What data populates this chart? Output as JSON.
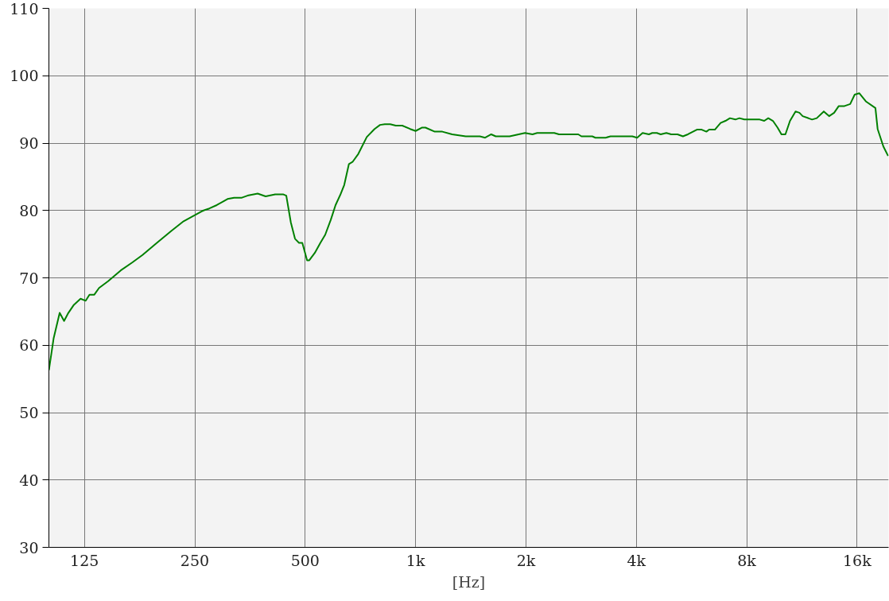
{
  "chart_data": {
    "type": "line",
    "xlabel": "[Hz]",
    "log": "x",
    "grid": true,
    "xlim": [
      100,
      19500
    ],
    "ylim": [
      30,
      110
    ],
    "xticks": [
      {
        "value": 125,
        "label": "125"
      },
      {
        "value": 250,
        "label": "250"
      },
      {
        "value": 500,
        "label": "500"
      },
      {
        "value": 1000,
        "label": "1k"
      },
      {
        "value": 2000,
        "label": "2k"
      },
      {
        "value": 4000,
        "label": "4k"
      },
      {
        "value": 8000,
        "label": "8k"
      },
      {
        "value": 16000,
        "label": "16k"
      }
    ],
    "yticks": [
      30,
      40,
      50,
      60,
      70,
      80,
      90,
      100,
      110
    ],
    "series": [
      {
        "color": "#008000",
        "x": [
          100,
          103,
          107,
          110,
          113,
          117,
          122,
          126,
          129,
          133,
          137,
          145,
          157,
          169,
          180,
          197,
          216,
          233,
          250,
          264,
          274,
          287,
          307,
          320,
          336,
          348,
          371,
          390,
          414,
          435,
          444,
          457,
          469,
          481,
          491,
          506,
          513,
          531,
          550,
          567,
          587,
          605,
          623,
          639,
          658,
          673,
          698,
          736,
          773,
          800,
          824,
          853,
          883,
          920,
          966,
          1000,
          1040,
          1064,
          1128,
          1183,
          1258,
          1370,
          1497,
          1548,
          1608,
          1654,
          1805,
          1988,
          2084,
          2146,
          2389,
          2461,
          2778,
          2834,
          3033,
          3093,
          3300,
          3400,
          3900,
          4020,
          4160,
          4330,
          4420,
          4550,
          4660,
          4830,
          4980,
          5180,
          5360,
          5530,
          5850,
          6030,
          6210,
          6320,
          6550,
          6790,
          7000,
          7200,
          7450,
          7640,
          7880,
          8680,
          8930,
          9160,
          9430,
          9710,
          9950,
          10200,
          10500,
          10870,
          11140,
          11370,
          12060,
          12420,
          12980,
          13420,
          13850,
          14260,
          14780,
          15320,
          15760,
          16230,
          16900,
          17950,
          18200,
          18870,
          19440
        ],
        "values": [
          56.3,
          61.0,
          64.8,
          63.6,
          64.8,
          66.0,
          66.9,
          66.6,
          67.5,
          67.5,
          68.5,
          69.5,
          71.1,
          72.3,
          73.4,
          75.2,
          77.0,
          78.4,
          79.3,
          80.0,
          80.3,
          80.8,
          81.7,
          81.9,
          81.9,
          82.2,
          82.5,
          82.1,
          82.4,
          82.4,
          82.2,
          78.2,
          75.8,
          75.2,
          75.2,
          72.6,
          72.6,
          73.7,
          75.2,
          76.4,
          78.6,
          80.8,
          82.3,
          83.8,
          86.9,
          87.2,
          88.4,
          90.9,
          92.1,
          92.7,
          92.8,
          92.8,
          92.6,
          92.6,
          92.1,
          91.8,
          92.3,
          92.3,
          91.7,
          91.7,
          91.3,
          91.0,
          91.0,
          90.8,
          91.3,
          91.0,
          91.0,
          91.5,
          91.3,
          91.5,
          91.5,
          91.3,
          91.3,
          91.0,
          91.0,
          90.8,
          90.8,
          91.0,
          91.0,
          90.8,
          91.5,
          91.3,
          91.5,
          91.5,
          91.3,
          91.5,
          91.3,
          91.3,
          91.0,
          91.3,
          92.0,
          92.0,
          91.7,
          92.0,
          92.0,
          93.0,
          93.3,
          93.7,
          93.5,
          93.7,
          93.5,
          93.5,
          93.3,
          93.7,
          93.3,
          92.3,
          91.3,
          91.3,
          93.3,
          94.7,
          94.5,
          94.0,
          93.5,
          93.7,
          94.7,
          94.0,
          94.5,
          95.5,
          95.5,
          95.8,
          97.2,
          97.4,
          96.2,
          95.2,
          92.1,
          89.5,
          88.1
        ]
      }
    ]
  }
}
